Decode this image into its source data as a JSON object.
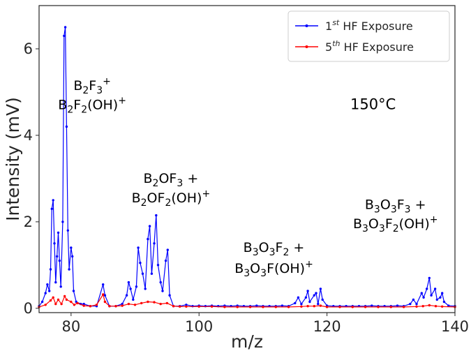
{
  "chart_data": {
    "type": "line",
    "xlabel": "m/z",
    "ylabel": "Intensity (mV)",
    "xlim": [
      75,
      140
    ],
    "ylim": [
      -0.1,
      7.0
    ],
    "xticks": [
      80,
      100,
      120,
      140
    ],
    "yticks": [
      0,
      2,
      4,
      6
    ],
    "grid": false,
    "legend_position": "top-right",
    "temperature_label": "150°C",
    "series": [
      {
        "name": "1st HF Exposure",
        "name_base": "1",
        "name_sup": "st",
        "name_rest": " HF Exposure",
        "color": "#0000ff",
        "points": [
          [
            75,
            0.05
          ],
          [
            75.5,
            0.15
          ],
          [
            76,
            0.35
          ],
          [
            76.3,
            0.55
          ],
          [
            76.6,
            0.4
          ],
          [
            76.8,
            0.9
          ],
          [
            77.0,
            2.3
          ],
          [
            77.2,
            2.5
          ],
          [
            77.4,
            1.5
          ],
          [
            77.6,
            0.6
          ],
          [
            77.8,
            1.2
          ],
          [
            78.0,
            1.75
          ],
          [
            78.2,
            1.1
          ],
          [
            78.4,
            0.5
          ],
          [
            78.7,
            2.0
          ],
          [
            78.9,
            6.3
          ],
          [
            79.1,
            6.5
          ],
          [
            79.3,
            4.2
          ],
          [
            79.5,
            1.8
          ],
          [
            79.7,
            0.9
          ],
          [
            80.0,
            1.4
          ],
          [
            80.2,
            1.2
          ],
          [
            80.4,
            0.4
          ],
          [
            80.8,
            0.15
          ],
          [
            81.5,
            0.1
          ],
          [
            82,
            0.1
          ],
          [
            83,
            0.05
          ],
          [
            84,
            0.05
          ],
          [
            85,
            0.55
          ],
          [
            85.3,
            0.3
          ],
          [
            86,
            0.05
          ],
          [
            87,
            0.05
          ],
          [
            88,
            0.1
          ],
          [
            88.7,
            0.3
          ],
          [
            89,
            0.6
          ],
          [
            89.3,
            0.45
          ],
          [
            89.7,
            0.2
          ],
          [
            90.2,
            0.5
          ],
          [
            90.5,
            1.4
          ],
          [
            90.8,
            1.05
          ],
          [
            91.2,
            0.8
          ],
          [
            91.6,
            0.45
          ],
          [
            92.0,
            1.6
          ],
          [
            92.3,
            1.9
          ],
          [
            92.6,
            0.8
          ],
          [
            93.0,
            1.5
          ],
          [
            93.3,
            2.15
          ],
          [
            93.6,
            1.0
          ],
          [
            94.0,
            0.6
          ],
          [
            94.3,
            0.4
          ],
          [
            94.8,
            1.1
          ],
          [
            95.1,
            1.35
          ],
          [
            95.4,
            0.3
          ],
          [
            96,
            0.05
          ],
          [
            97,
            0.05
          ],
          [
            98,
            0.08
          ],
          [
            99,
            0.05
          ],
          [
            100,
            0.06
          ],
          [
            101,
            0.05
          ],
          [
            102,
            0.06
          ],
          [
            103,
            0.05
          ],
          [
            104,
            0.06
          ],
          [
            105,
            0.05
          ],
          [
            106,
            0.06
          ],
          [
            107,
            0.05
          ],
          [
            108,
            0.05
          ],
          [
            109,
            0.06
          ],
          [
            110,
            0.05
          ],
          [
            111,
            0.05
          ],
          [
            112,
            0.05
          ],
          [
            113,
            0.06
          ],
          [
            114,
            0.05
          ],
          [
            115,
            0.12
          ],
          [
            115.5,
            0.25
          ],
          [
            116,
            0.1
          ],
          [
            116.7,
            0.25
          ],
          [
            117,
            0.4
          ],
          [
            117.3,
            0.15
          ],
          [
            118,
            0.3
          ],
          [
            118.3,
            0.35
          ],
          [
            118.6,
            0.1
          ],
          [
            119.0,
            0.45
          ],
          [
            119.3,
            0.2
          ],
          [
            120,
            0.06
          ],
          [
            121,
            0.05
          ],
          [
            122,
            0.05
          ],
          [
            123,
            0.05
          ],
          [
            124,
            0.05
          ],
          [
            125,
            0.05
          ],
          [
            126,
            0.05
          ],
          [
            127,
            0.06
          ],
          [
            128,
            0.05
          ],
          [
            129,
            0.05
          ],
          [
            130,
            0.05
          ],
          [
            131,
            0.06
          ],
          [
            132,
            0.05
          ],
          [
            133,
            0.1
          ],
          [
            133.5,
            0.2
          ],
          [
            134,
            0.1
          ],
          [
            134.8,
            0.35
          ],
          [
            135.1,
            0.25
          ],
          [
            135.6,
            0.45
          ],
          [
            136.0,
            0.7
          ],
          [
            136.3,
            0.3
          ],
          [
            136.9,
            0.45
          ],
          [
            137.2,
            0.2
          ],
          [
            137.7,
            0.25
          ],
          [
            138.0,
            0.35
          ],
          [
            138.3,
            0.15
          ],
          [
            139,
            0.06
          ],
          [
            140,
            0.05
          ]
        ]
      },
      {
        "name": "5th HF Exposure",
        "name_base": "5",
        "name_sup": "th",
        "name_rest": " HF Exposure",
        "color": "#ff0000",
        "points": [
          [
            75,
            0.03
          ],
          [
            76,
            0.08
          ],
          [
            76.8,
            0.18
          ],
          [
            77.2,
            0.25
          ],
          [
            77.6,
            0.1
          ],
          [
            78,
            0.2
          ],
          [
            78.5,
            0.1
          ],
          [
            79,
            0.28
          ],
          [
            79.3,
            0.2
          ],
          [
            80,
            0.15
          ],
          [
            80.5,
            0.08
          ],
          [
            81,
            0.12
          ],
          [
            82,
            0.06
          ],
          [
            83,
            0.05
          ],
          [
            84,
            0.08
          ],
          [
            85,
            0.32
          ],
          [
            85.3,
            0.15
          ],
          [
            86,
            0.05
          ],
          [
            87,
            0.05
          ],
          [
            88,
            0.06
          ],
          [
            89,
            0.1
          ],
          [
            90,
            0.08
          ],
          [
            91,
            0.12
          ],
          [
            92,
            0.15
          ],
          [
            93,
            0.14
          ],
          [
            94,
            0.1
          ],
          [
            95,
            0.12
          ],
          [
            96,
            0.05
          ],
          [
            97,
            0.04
          ],
          [
            98,
            0.04
          ],
          [
            100,
            0.04
          ],
          [
            102,
            0.04
          ],
          [
            104,
            0.03
          ],
          [
            106,
            0.03
          ],
          [
            108,
            0.03
          ],
          [
            110,
            0.03
          ],
          [
            112,
            0.03
          ],
          [
            114,
            0.03
          ],
          [
            116,
            0.04
          ],
          [
            117,
            0.05
          ],
          [
            118,
            0.05
          ],
          [
            119,
            0.06
          ],
          [
            120,
            0.03
          ],
          [
            122,
            0.03
          ],
          [
            124,
            0.03
          ],
          [
            126,
            0.03
          ],
          [
            128,
            0.03
          ],
          [
            130,
            0.03
          ],
          [
            132,
            0.03
          ],
          [
            134,
            0.04
          ],
          [
            135,
            0.05
          ],
          [
            136,
            0.07
          ],
          [
            137,
            0.05
          ],
          [
            138,
            0.04
          ],
          [
            140,
            0.03
          ]
        ]
      }
    ],
    "annotations": [
      {
        "x": 83.3,
        "y": 5.05,
        "parts": [
          {
            "t": "B"
          },
          {
            "t": "2",
            "sub": true
          },
          {
            "t": "F"
          },
          {
            "t": "3",
            "sub": true
          },
          {
            "t": "+",
            "sup": true
          }
        ]
      },
      {
        "x": 83.3,
        "y": 4.6,
        "parts": [
          {
            "t": "B"
          },
          {
            "t": "2",
            "sub": true
          },
          {
            "t": "F"
          },
          {
            "t": "2",
            "sub": true
          },
          {
            "t": "(OH)"
          },
          {
            "t": "+",
            "sup": true
          }
        ]
      },
      {
        "x": 95.6,
        "y": 2.9,
        "parts": [
          {
            "t": "B"
          },
          {
            "t": "2",
            "sub": true
          },
          {
            "t": "OF"
          },
          {
            "t": "3",
            "sub": true
          },
          {
            "t": " +"
          }
        ]
      },
      {
        "x": 95.6,
        "y": 2.45,
        "parts": [
          {
            "t": "B"
          },
          {
            "t": "2",
            "sub": true
          },
          {
            "t": "OF"
          },
          {
            "t": "2",
            "sub": true
          },
          {
            "t": "(OH)"
          },
          {
            "t": "+",
            "sup": true
          }
        ]
      },
      {
        "x": 111.7,
        "y": 1.3,
        "parts": [
          {
            "t": "B"
          },
          {
            "t": "3",
            "sub": true
          },
          {
            "t": "O"
          },
          {
            "t": "3",
            "sub": true
          },
          {
            "t": "F"
          },
          {
            "t": "2",
            "sub": true
          },
          {
            "t": " +"
          }
        ]
      },
      {
        "x": 111.7,
        "y": 0.82,
        "parts": [
          {
            "t": "B"
          },
          {
            "t": "3",
            "sub": true
          },
          {
            "t": "O"
          },
          {
            "t": "3",
            "sub": true
          },
          {
            "t": "F(OH)"
          },
          {
            "t": "+",
            "sup": true
          }
        ]
      },
      {
        "x": 130.7,
        "y": 2.3,
        "parts": [
          {
            "t": "B"
          },
          {
            "t": "3",
            "sub": true
          },
          {
            "t": "O"
          },
          {
            "t": "3",
            "sub": true
          },
          {
            "t": "F"
          },
          {
            "t": "3",
            "sub": true
          },
          {
            "t": " +"
          }
        ]
      },
      {
        "x": 130.7,
        "y": 1.85,
        "parts": [
          {
            "t": "B"
          },
          {
            "t": "3",
            "sub": true
          },
          {
            "t": "O"
          },
          {
            "t": "3",
            "sub": true
          },
          {
            "t": "F"
          },
          {
            "t": "2",
            "sub": true
          },
          {
            "t": "(OH)"
          },
          {
            "t": "+",
            "sup": true
          }
        ]
      }
    ]
  }
}
